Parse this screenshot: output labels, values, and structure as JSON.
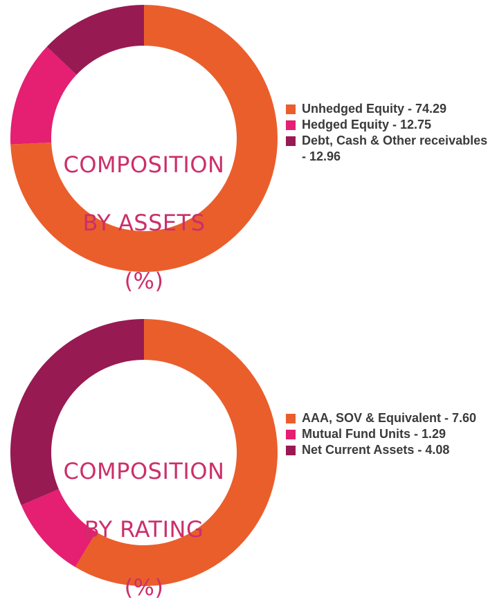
{
  "colors": {
    "unhedged": "#ea5e2c",
    "hedged": "#e51f71",
    "debt": "#981a52",
    "title_text": "#cc2f6a",
    "legend_text": "#3a3a3a"
  },
  "chart_data": [
    {
      "type": "pie",
      "variant": "donut",
      "title_lines": [
        "COMPOSITION",
        "BY ASSETS",
        "(%)"
      ],
      "legend_position": "right",
      "slices": [
        {
          "label": "Unhedged Equity - 74.29",
          "name": "Unhedged Equity",
          "value": 74.29,
          "color": "#ea5e2c"
        },
        {
          "label": "Hedged Equity - 12.75",
          "name": "Hedged Equity",
          "value": 12.75,
          "color": "#e51f71"
        },
        {
          "label": "Debt, Cash & Other receivables - 12.96",
          "name": "Debt, Cash & Other receivables",
          "value": 12.96,
          "color": "#981a52"
        }
      ]
    },
    {
      "type": "pie",
      "variant": "donut",
      "title_lines": [
        "COMPOSITION",
        "BY RATING",
        "(%)"
      ],
      "legend_position": "right",
      "slices": [
        {
          "label": "AAA, SOV & Equivalent - 7.60",
          "name": "AAA, SOV & Equivalent",
          "value": 7.6,
          "color": "#ea5e2c"
        },
        {
          "label": "Mutual Fund Units - 1.29",
          "name": "Mutual Fund Units",
          "value": 1.29,
          "color": "#e51f71"
        },
        {
          "label": "Net Current Assets - 4.08",
          "name": "Net Current Assets",
          "value": 4.08,
          "color": "#981a52"
        }
      ]
    }
  ]
}
